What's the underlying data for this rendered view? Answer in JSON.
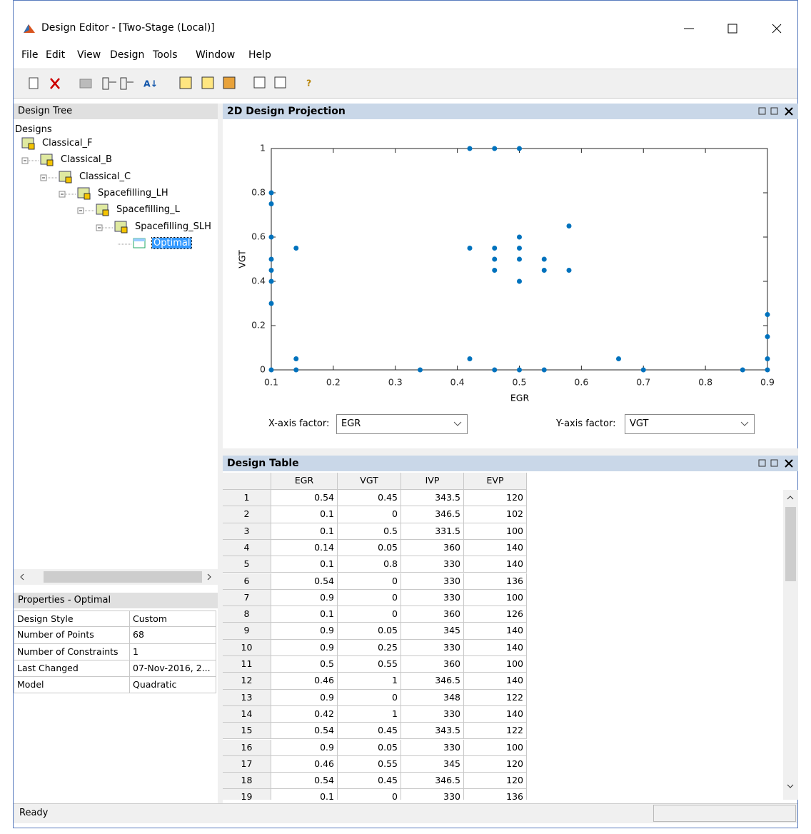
{
  "window": {
    "title": "Design Editor - [Two-Stage (Local)]"
  },
  "menu": [
    "File",
    "Edit",
    "View",
    "Design",
    "Tools",
    "Window",
    "Help"
  ],
  "design_tree": {
    "title": "Design Tree",
    "root": "Designs",
    "nodes": [
      "Classical_F",
      "Classical_B",
      "Classical_C",
      "Spacefilling_LH",
      "Spacefilling_L",
      "Spacefilling_SLH",
      "Optimal"
    ]
  },
  "properties": {
    "title": "Properties - Optimal",
    "rows": [
      [
        "Design Style",
        "Custom"
      ],
      [
        "Number of Points",
        "68"
      ],
      [
        "Number of Constraints",
        "1"
      ],
      [
        "Last Changed",
        "07-Nov-2016, 2..."
      ],
      [
        "Model",
        "Quadratic"
      ]
    ]
  },
  "chart_data": {
    "type": "scatter",
    "title": "2D Design Projection",
    "x_label": "EGR",
    "y_label": "VGT",
    "color": "#0072bd",
    "x": [
      0.1,
      0.1,
      0.1,
      0.1,
      0.1,
      0.1,
      0.1,
      0.1,
      0.14,
      0.14,
      0.14,
      0.34,
      0.42,
      0.46,
      0.5,
      0.42,
      0.42,
      0.46,
      0.46,
      0.46,
      0.46,
      0.5,
      0.5,
      0.5,
      0.5,
      0.5,
      0.54,
      0.54,
      0.54,
      0.58,
      0.58,
      0.66,
      0.7,
      0.86,
      0.9,
      0.9,
      0.9,
      0.9
    ],
    "values": [
      0.8,
      0.75,
      0.6,
      0.5,
      0.45,
      0.4,
      0.3,
      0,
      0.55,
      0.05,
      0,
      0,
      1,
      1,
      1,
      0.55,
      0.05,
      0.55,
      0.5,
      0.45,
      0,
      0.6,
      0.55,
      0.5,
      0.4,
      0,
      0.5,
      0.45,
      0,
      0.65,
      0.45,
      0.05,
      0,
      0,
      0.25,
      0.15,
      0.05,
      0
    ],
    "xlim": [
      0.1,
      0.9
    ],
    "ylim": [
      0,
      1
    ],
    "xticks": [
      0.1,
      0.2,
      0.3,
      0.4,
      0.5,
      0.6,
      0.7,
      0.8,
      0.9
    ],
    "yticks": [
      0,
      0.2,
      0.4,
      0.6,
      0.8,
      1
    ]
  },
  "controls": {
    "x_factor_label": "X-axis factor:",
    "x_factor": "EGR",
    "y_factor_label": "Y-axis factor:",
    "y_factor": "VGT"
  },
  "design_table": {
    "title": "Design Table",
    "columns": [
      "EGR",
      "VGT",
      "IVP",
      "EVP"
    ],
    "rows": [
      [
        1,
        0.54,
        0.45,
        343.5,
        120
      ],
      [
        2,
        0.1,
        0,
        346.5,
        102
      ],
      [
        3,
        0.1,
        0.5,
        331.5,
        100
      ],
      [
        4,
        0.14,
        0.05,
        360,
        140
      ],
      [
        5,
        0.1,
        0.8,
        330,
        140
      ],
      [
        6,
        0.54,
        0,
        330,
        136
      ],
      [
        7,
        0.9,
        0,
        330,
        100
      ],
      [
        8,
        0.1,
        0,
        360,
        126
      ],
      [
        9,
        0.9,
        0.05,
        345,
        140
      ],
      [
        10,
        0.9,
        0.25,
        330,
        140
      ],
      [
        11,
        0.5,
        0.55,
        360,
        100
      ],
      [
        12,
        0.46,
        1,
        346.5,
        140
      ],
      [
        13,
        0.9,
        0,
        348,
        122
      ],
      [
        14,
        0.42,
        1,
        330,
        140
      ],
      [
        15,
        0.54,
        0.45,
        343.5,
        122
      ],
      [
        16,
        0.9,
        0.05,
        330,
        100
      ],
      [
        17,
        0.46,
        0.55,
        345,
        120
      ],
      [
        18,
        0.54,
        0.45,
        346.5,
        120
      ],
      [
        19,
        0.1,
        0,
        330,
        136
      ]
    ]
  },
  "status": "Ready"
}
